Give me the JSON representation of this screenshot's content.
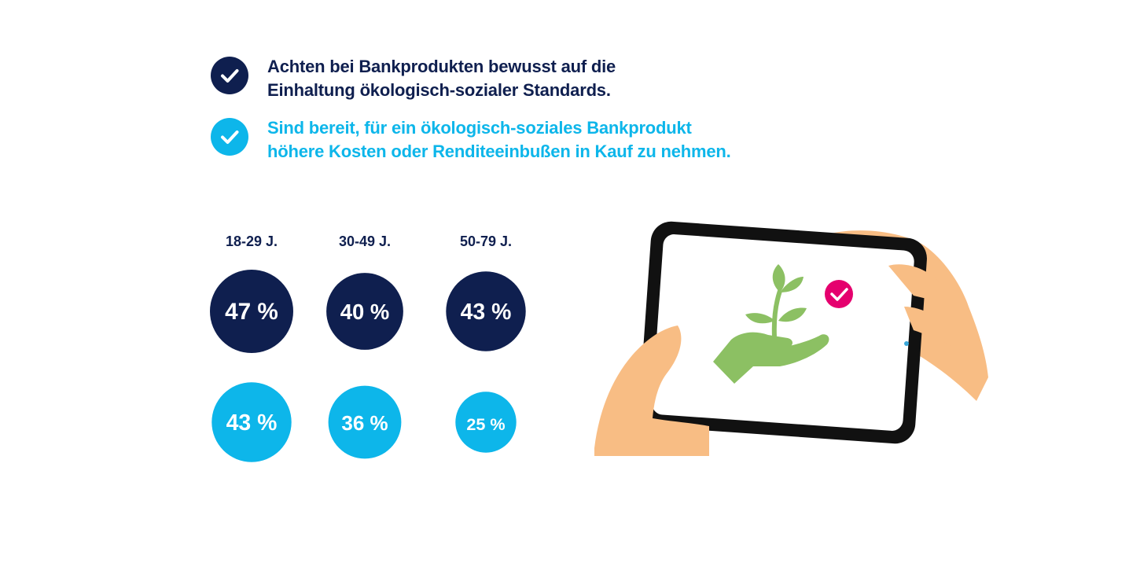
{
  "legend": [
    {
      "text": "Achten bei Bankprodukten bewusst auf die\nEinhaltung ökologisch-sozialer Standards.",
      "color": "#0f1f4f",
      "icon": "checkmark-icon"
    },
    {
      "text": "Sind bereit, für ein ökologisch-soziales Bankprodukt\nhöhere Kosten oder Renditeeinbußen in Kauf zu nehmen.",
      "color": "#0db6ea",
      "icon": "checkmark-icon"
    }
  ],
  "chart_data": {
    "type": "bubble",
    "categories": [
      "18-29 J.",
      "30-49 J.",
      "50-79 J."
    ],
    "series": [
      {
        "name": "Achten bei Bankprodukten bewusst auf die Einhaltung ökologisch-sozialer Standards.",
        "values": [
          47,
          40,
          43
        ],
        "labels": [
          "47 %",
          "40 %",
          "43 %"
        ],
        "color": "#0f1f4f"
      },
      {
        "name": "Sind bereit, für ein ökologisch-soziales Bankprodukt höhere Kosten oder Renditeeinbußen in Kauf zu nehmen.",
        "values": [
          43,
          36,
          25
        ],
        "labels": [
          "43 %",
          "36 %",
          "25 %"
        ],
        "color": "#0db6ea"
      }
    ]
  },
  "illustration": {
    "icons": [
      "tablet-icon",
      "hand-icon",
      "plant-icon",
      "checkmark-badge-icon"
    ],
    "colors": {
      "skin": "#f8bd84",
      "tablet_frame": "#111111",
      "plant": "#8cc063",
      "badge": "#e5006e"
    }
  }
}
